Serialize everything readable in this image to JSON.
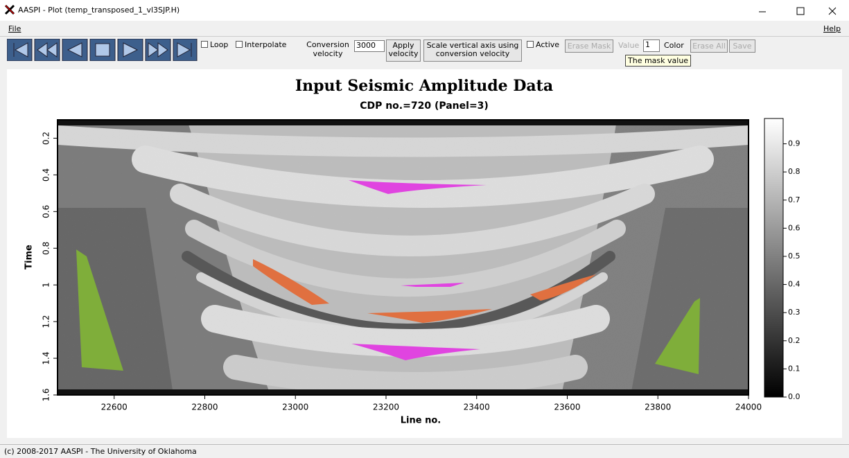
{
  "window": {
    "title": "AASPI - Plot (temp_transposed_1_vl3SJP.H)"
  },
  "menu": {
    "file": "File",
    "help": "Help"
  },
  "toolbar": {
    "loop": "Loop",
    "interpolate": "Interpolate",
    "conversion_label": "Conversion velocity",
    "conversion_value": "3000",
    "apply": "Apply velocity",
    "scale": "Scale vertical axis using conversion velocity",
    "active": "Active",
    "erase_mask": "Erase Mask",
    "value_label": "Value",
    "value": "1",
    "color": "Color",
    "erase_all": "Erase All",
    "save": "Save",
    "tooltip": "The mask value"
  },
  "plot": {
    "title": "Input Seismic Amplitude Data",
    "subtitle": "CDP no.=720 (Panel=3)",
    "xlabel": "Line no.",
    "ylabel": "Time",
    "xlim": [
      22475,
      24000
    ],
    "xticks": [
      22600,
      22800,
      23000,
      23200,
      23400,
      23600,
      23800,
      24000
    ],
    "ylim": [
      0.1,
      1.6
    ],
    "yticks": [
      0.2,
      0.4,
      0.6,
      0.8,
      1.0,
      1.2,
      1.4,
      1.6
    ],
    "clim": [
      0,
      0.99
    ],
    "cticks": [
      {
        "value": 0,
        "label": "0.0"
      },
      0.1,
      0.2,
      0.3,
      0.4,
      0.5,
      0.6,
      0.7,
      0.8,
      0.9
    ]
  },
  "status": "(c) 2008-2017 AASPI - The University of Oklahoma"
}
